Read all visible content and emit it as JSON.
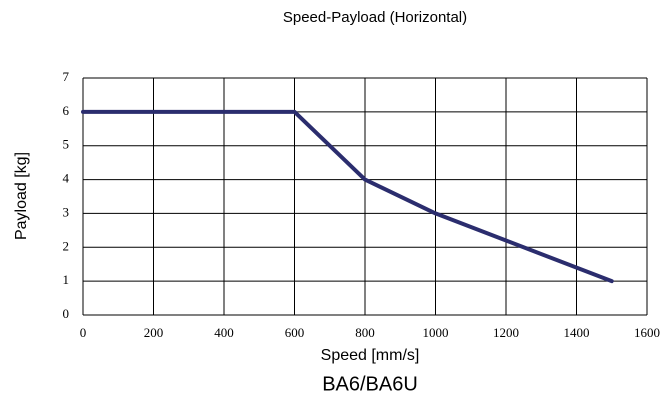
{
  "chart_data": {
    "type": "line",
    "title": "Speed-Payload (Horizontal)",
    "xlabel": "Speed [mm/s]",
    "ylabel": "Payload [kg]",
    "caption": "BA6/BA6U",
    "x": [
      0,
      600,
      800,
      1000,
      1200,
      1500
    ],
    "series": [
      {
        "color": "#2b2d6e",
        "values": [
          6,
          6,
          4,
          3,
          2.2,
          1
        ]
      }
    ],
    "xlim": [
      0,
      1600
    ],
    "xticks": [
      0,
      200,
      400,
      600,
      800,
      1000,
      1200,
      1400,
      1600
    ],
    "ylim": [
      0,
      7
    ],
    "yticks": [
      0,
      1,
      2,
      3,
      4,
      5,
      6,
      7
    ],
    "grid": true
  }
}
